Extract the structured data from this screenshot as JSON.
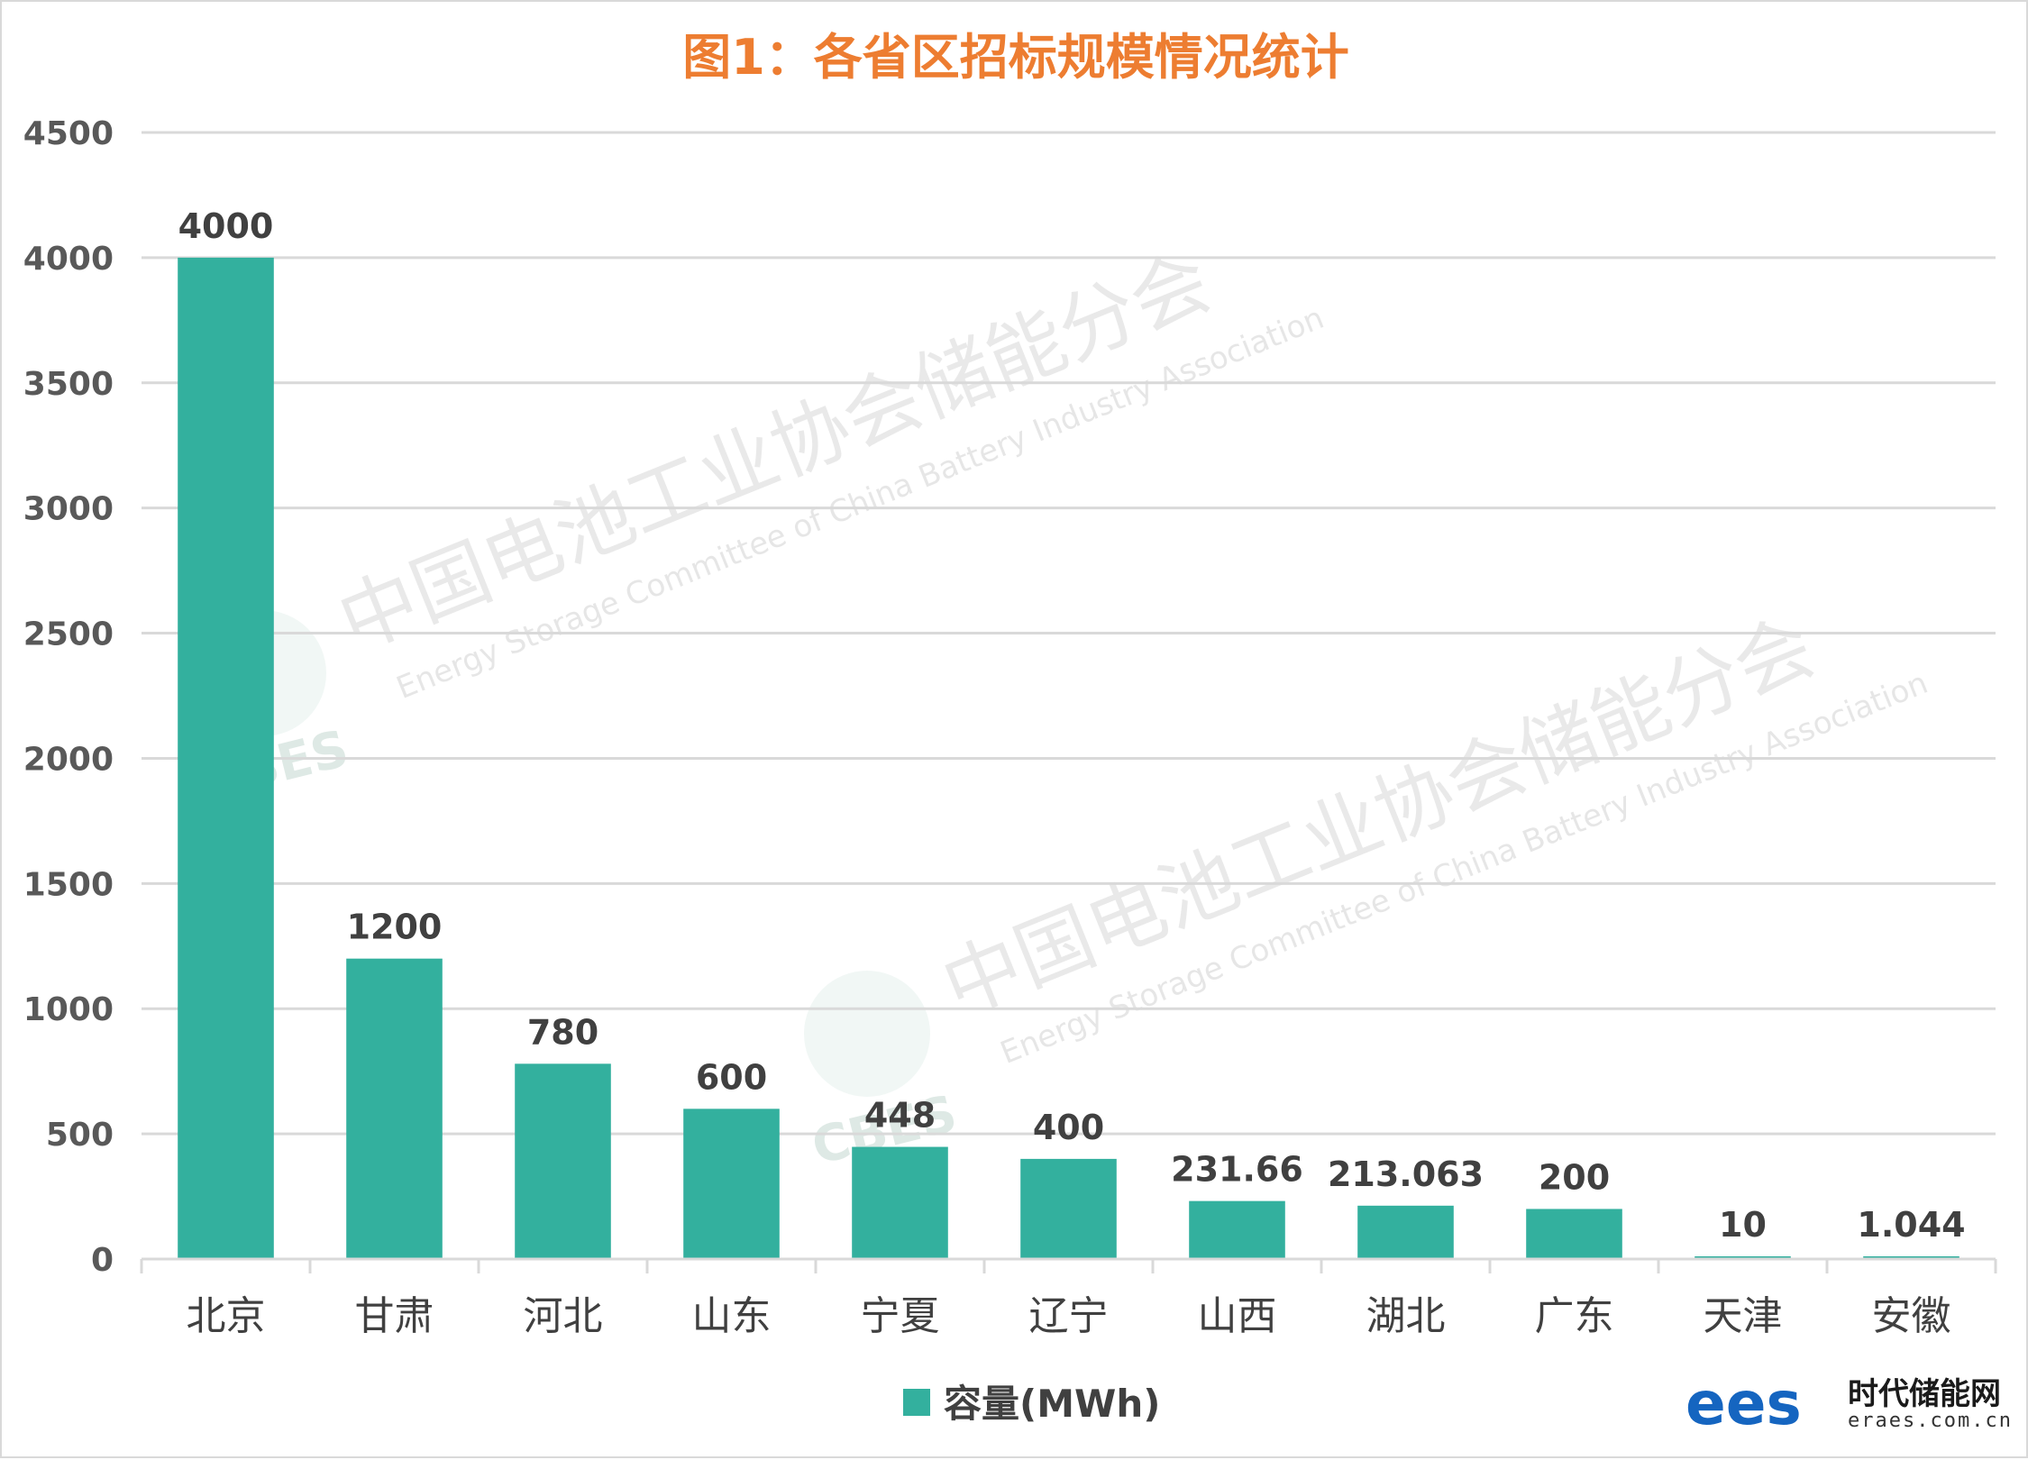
{
  "chart_data": {
    "type": "bar",
    "title": "图1：各省区招标规模情况统计",
    "categories": [
      "北京",
      "甘肃",
      "河北",
      "山东",
      "宁夏",
      "辽宁",
      "山西",
      "湖北",
      "广东",
      "天津",
      "安徽"
    ],
    "series": [
      {
        "name": "容量(MWh)",
        "values": [
          4000,
          1200,
          780,
          600,
          448,
          400,
          231.66,
          213.063,
          200,
          10,
          1.044
        ],
        "labels": [
          "4000",
          "1200",
          "780",
          "600",
          "448",
          "400",
          "231.66",
          "213.063",
          "200",
          "10",
          "1.044"
        ],
        "color": "#33b09e"
      }
    ],
    "ylim": [
      0,
      4500
    ],
    "yticks": [
      0,
      500,
      1000,
      1500,
      2000,
      2500,
      3000,
      3500,
      4000,
      4500
    ],
    "grid": true,
    "legend": "bottom"
  },
  "colors": {
    "title": "#ed7d31",
    "bar": "#33b09e",
    "grid": "#d9d9d9",
    "brand": "#1565c0"
  },
  "watermark": {
    "cn": "中国电池工业协会储能分会",
    "en": "Energy Storage Committee of China Battery Industry Association",
    "logo": "CBES"
  },
  "brand": {
    "logo": "ees",
    "name": "时代储能网",
    "url": "eraes.com.cn"
  }
}
